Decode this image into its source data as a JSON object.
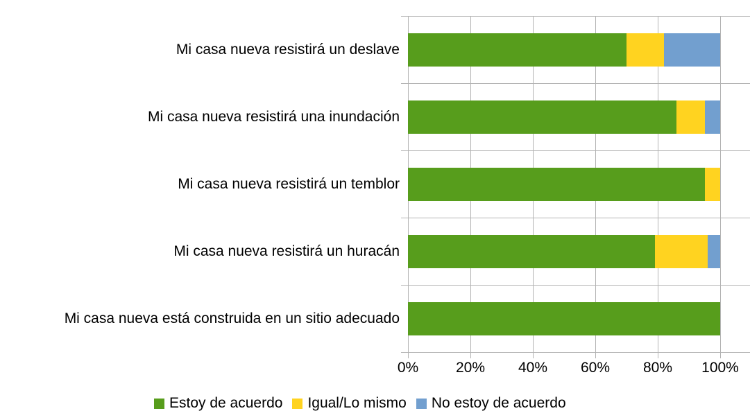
{
  "chart_data": {
    "type": "bar",
    "stacked": true,
    "orientation": "horizontal",
    "title": "",
    "categories": [
      "Mi casa nueva resistirá un deslave",
      "Mi casa nueva resistirá una inundación",
      "Mi casa nueva resistirá un temblor",
      "Mi casa nueva resistirá un huracán",
      "Mi casa nueva está construida en un sitio adecuado"
    ],
    "series": [
      {
        "name": "Estoy de acuerdo",
        "color": "#579d1c",
        "values": [
          70,
          86,
          95,
          79,
          100
        ]
      },
      {
        "name": "Igual/Lo mismo",
        "color": "#ffd320",
        "values": [
          12,
          9,
          5,
          17,
          0
        ]
      },
      {
        "name": "No estoy de acuerdo",
        "color": "#729fcf",
        "values": [
          18,
          5,
          0,
          4,
          0
        ]
      }
    ],
    "x_tick_labels": [
      "0%",
      "20%",
      "40%",
      "60%",
      "80%",
      "100%"
    ],
    "x_tick_values": [
      0,
      20,
      40,
      60,
      80,
      100
    ],
    "xlim": [
      0,
      100
    ],
    "unit": "%",
    "grid": true,
    "legend_position": "bottom",
    "colors": {
      "grid": "#b3b3b3",
      "text": "#000000",
      "background": "#ffffff"
    }
  }
}
